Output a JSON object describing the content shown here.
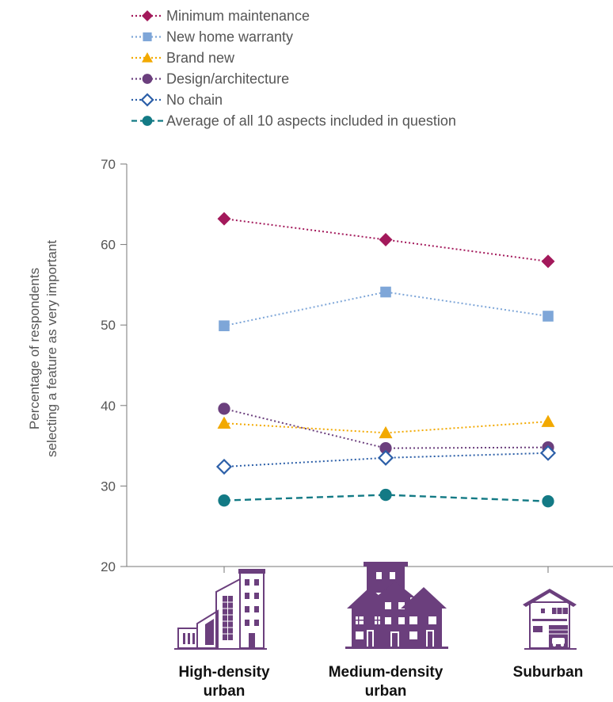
{
  "chart_data": {
    "type": "line",
    "categories": [
      "High-density urban",
      "Medium-density urban",
      "Suburban"
    ],
    "category_labels": [
      [
        "High-density",
        "urban"
      ],
      [
        "Medium-density",
        "urban"
      ],
      [
        "Suburban"
      ]
    ],
    "ylabel": [
      "Percentage of respondents",
      "selecting a feature as very important"
    ],
    "ylim": [
      20,
      70
    ],
    "yticks": [
      20,
      30,
      40,
      50,
      60,
      70
    ],
    "legend_position": "top-left",
    "grid": false,
    "series": [
      {
        "name": "Minimum maintenance",
        "values": [
          63.2,
          60.6,
          57.9
        ],
        "color": "#a3195b",
        "marker": "diamond",
        "line": "dotted"
      },
      {
        "name": "New home warranty",
        "values": [
          49.9,
          54.1,
          51.1
        ],
        "color": "#7ea6d8",
        "marker": "square",
        "line": "dotted"
      },
      {
        "name": "Brand new",
        "values": [
          37.8,
          36.6,
          38.0
        ],
        "color": "#f2a900",
        "marker": "triangle",
        "line": "dotted"
      },
      {
        "name": "Design/architecture",
        "values": [
          39.6,
          34.7,
          34.8
        ],
        "color": "#6b3f7d",
        "marker": "circle",
        "line": "dotted"
      },
      {
        "name": "No chain",
        "values": [
          32.4,
          33.5,
          34.1
        ],
        "color": "#2c5fa8",
        "marker": "diamond-open",
        "line": "dotted"
      },
      {
        "name": "Average of all 10 aspects included in question",
        "values": [
          28.2,
          28.9,
          28.1
        ],
        "color": "#137a85",
        "marker": "circle",
        "line": "dashed"
      }
    ]
  },
  "icons": {
    "high_density": "high-density-buildings-icon",
    "medium_density": "medium-density-houses-icon",
    "suburban": "suburban-house-icon",
    "icon_color": "#6b3f7d"
  }
}
